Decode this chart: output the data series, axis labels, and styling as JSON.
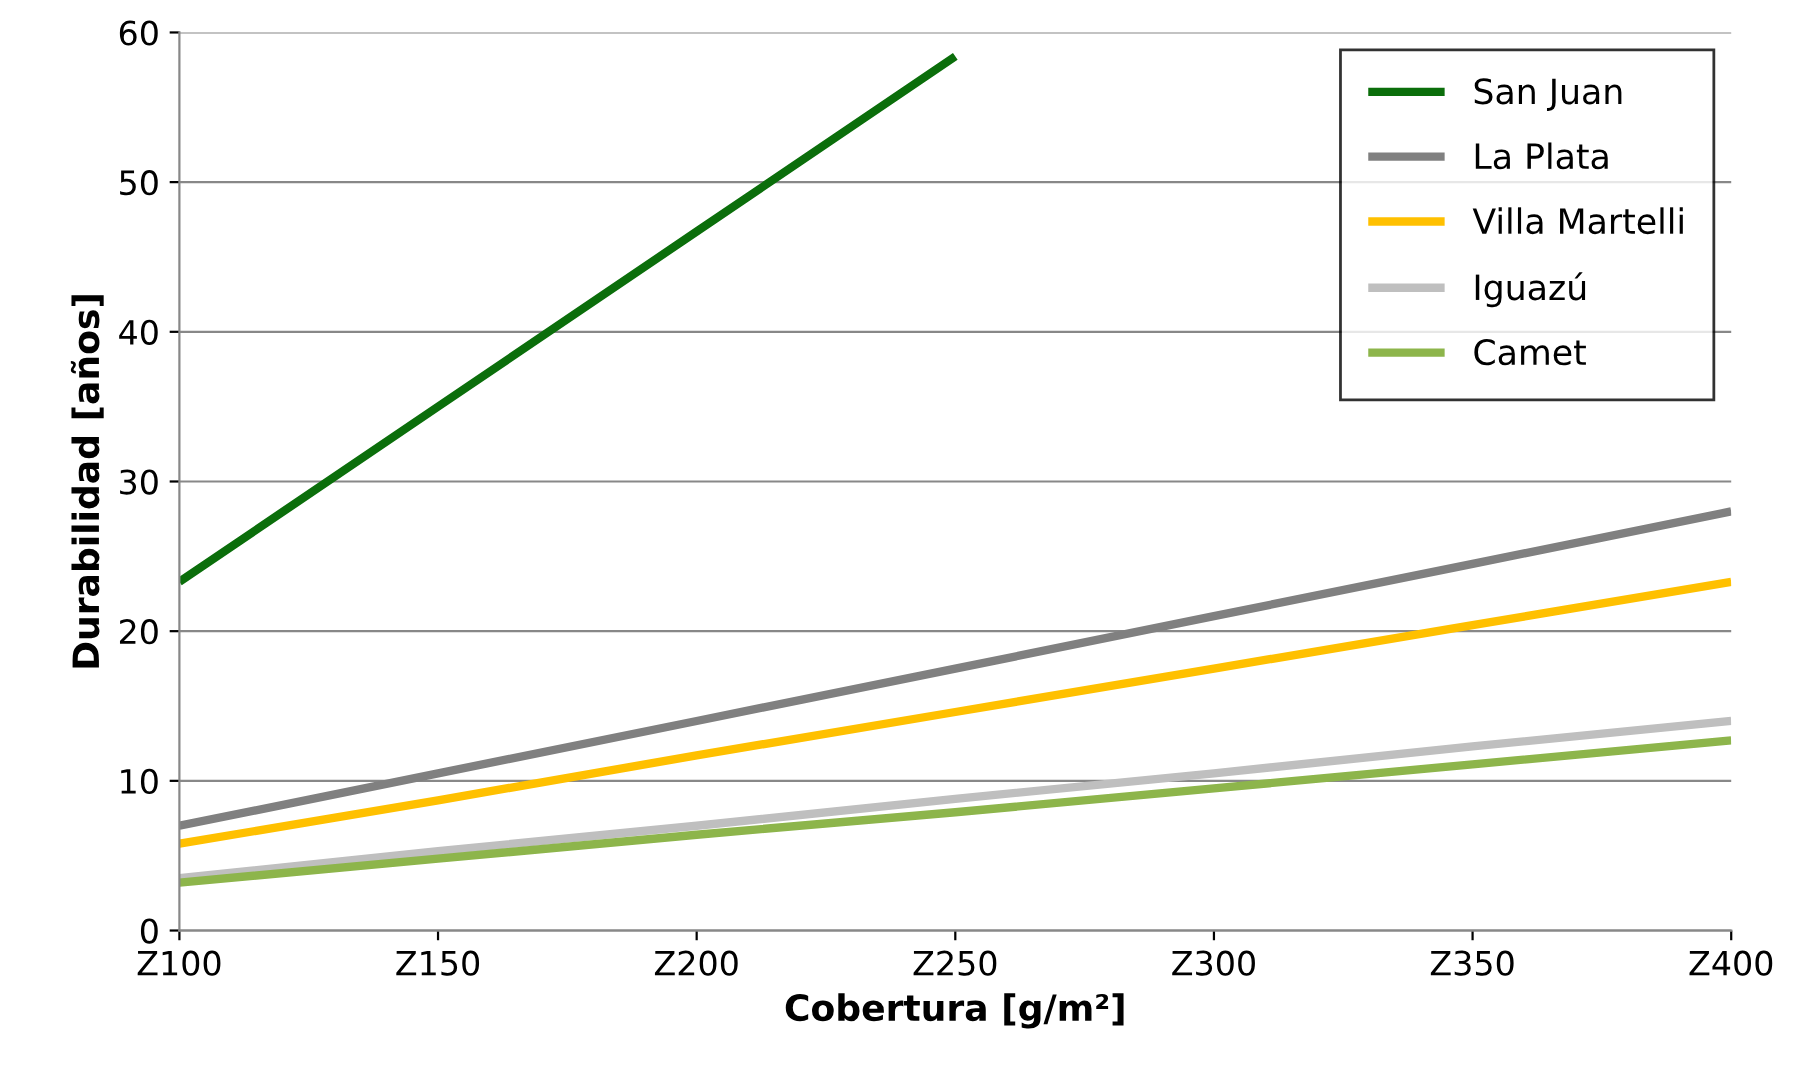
{
  "chart_data": {
    "type": "line",
    "xlabel": "Cobertura [g/m²]",
    "ylabel": "Durabilidad [años]",
    "categories": [
      "Z100",
      "Z150",
      "Z200",
      "Z250",
      "Z300",
      "Z350",
      "Z400"
    ],
    "ylim": [
      0,
      60
    ],
    "yticks": [
      0,
      10,
      20,
      30,
      40,
      50,
      60
    ],
    "grid": "y",
    "legend": "top right",
    "marker": "none",
    "line_style": "solid",
    "series": [
      {
        "name": "San Juan",
        "color": "#0b6e0b",
        "values": [
          23.3,
          35.0,
          46.7,
          58.4,
          null,
          null,
          null
        ]
      },
      {
        "name": "La Plata",
        "color": "#808080",
        "values": [
          7.0,
          10.5,
          14.0,
          17.5,
          21.0,
          24.5,
          28.0
        ]
      },
      {
        "name": "Villa Martelli",
        "color": "#ffc000",
        "values": [
          5.8,
          8.7,
          11.7,
          14.6,
          17.5,
          20.4,
          23.3
        ]
      },
      {
        "name": "Iguazú",
        "color": "#bfbfbf",
        "values": [
          3.5,
          5.3,
          7.0,
          8.8,
          10.5,
          12.3,
          14.0
        ]
      },
      {
        "name": "Camet",
        "color": "#8db54b",
        "values": [
          3.2,
          4.8,
          6.4,
          7.9,
          9.5,
          11.1,
          12.7
        ]
      }
    ]
  }
}
